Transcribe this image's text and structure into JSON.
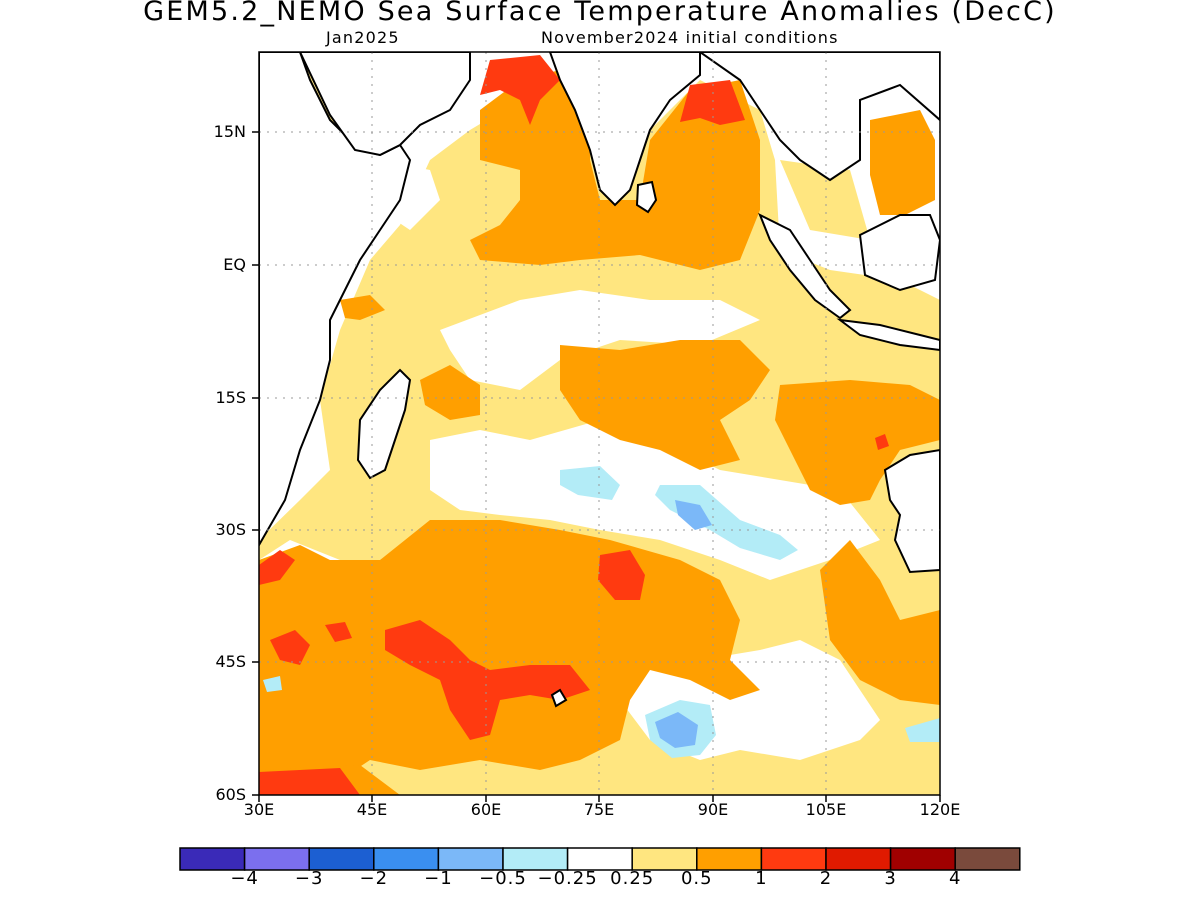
{
  "title": "GEM5.2_NEMO Sea Surface Temperature Anomalies (DecC)",
  "subtitle_left": "Jan2025",
  "subtitle_right": "November2024 initial conditions",
  "map": {
    "region": "Indian Ocean",
    "lon_range": [
      30,
      120
    ],
    "lat_range": [
      -60,
      24
    ],
    "lat_ticks": [
      {
        "label": "15N"
      },
      {
        "label": "EQ"
      },
      {
        "label": "15S"
      },
      {
        "label": "30S"
      },
      {
        "label": "45S"
      },
      {
        "label": "60S"
      }
    ],
    "lon_ticks": [
      {
        "label": "30E"
      },
      {
        "label": "45E"
      },
      {
        "label": "60E"
      },
      {
        "label": "75E"
      },
      {
        "label": "90E"
      },
      {
        "label": "105E"
      },
      {
        "label": "120E"
      }
    ],
    "grid": true
  },
  "colorbar": {
    "colors": [
      "#3a2ab8",
      "#7b6fee",
      "#1c5fd2",
      "#3a8ff0",
      "#7bb8f8",
      "#b3ecf7",
      "#ffffff",
      "#ffe680",
      "#ff9f00",
      "#ff3a10",
      "#e01a00",
      "#a00000",
      "#7a4a3c"
    ],
    "labels": [
      "−4",
      "−3",
      "−2",
      "−1",
      "−0.5",
      "−0.25",
      "0.25",
      "0.5",
      "1",
      "2",
      "3",
      "4"
    ]
  }
}
